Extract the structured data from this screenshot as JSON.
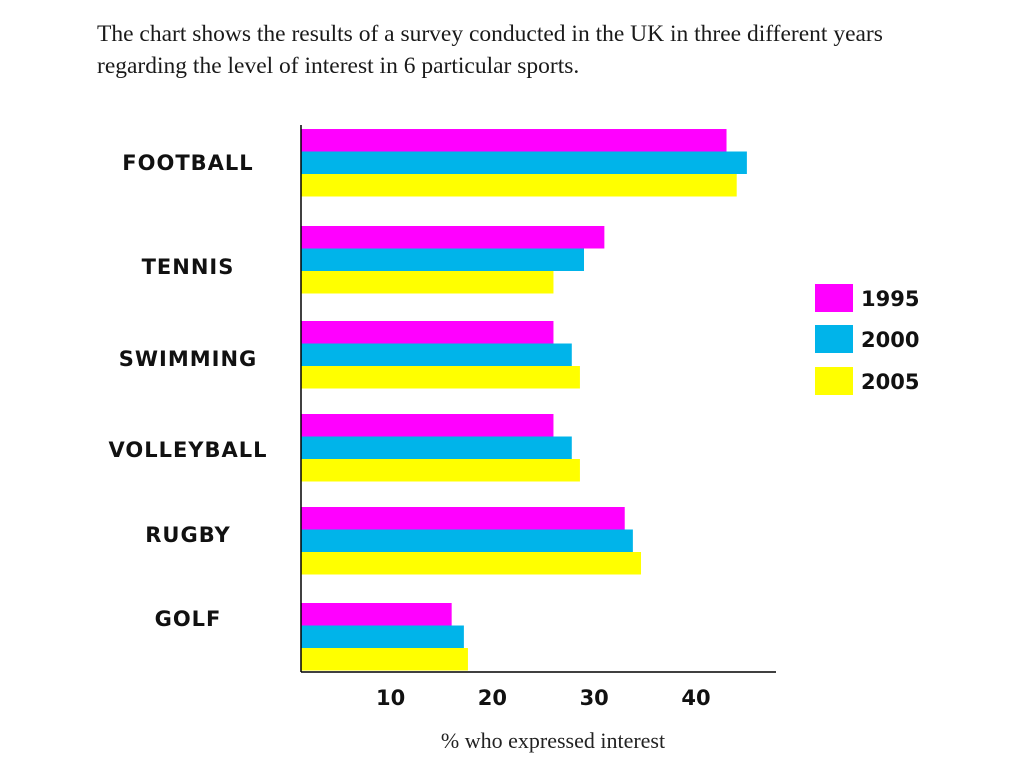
{
  "intro_text": "The chart shows the results of a survey conducted in the UK in three different years regarding the level of interest in 6 particular sports.",
  "chart_data": {
    "type": "bar",
    "orientation": "horizontal",
    "categories": [
      "FOOTBALL",
      "TENNIS",
      "SWIMMING",
      "VOLLEYBALL",
      "RUGBY",
      "GOLF"
    ],
    "series": [
      {
        "name": "1995",
        "color": "#ff00ff",
        "values": [
          43,
          31,
          26,
          26,
          33,
          16
        ]
      },
      {
        "name": "2000",
        "color": "#00b4ea",
        "values": [
          45,
          29,
          27.8,
          27.8,
          33.8,
          17.2
        ]
      },
      {
        "name": "2005",
        "color": "#ffff00",
        "values": [
          44,
          26,
          28.6,
          28.6,
          34.6,
          17.6
        ]
      }
    ],
    "xticks": [
      "10",
      "20",
      "30",
      "40"
    ],
    "xtick_values": [
      10,
      20,
      30,
      40
    ],
    "xlabel": "% who expressed interest",
    "xlim": [
      1.2,
      48
    ],
    "legend_position": "right",
    "grid": false
  }
}
